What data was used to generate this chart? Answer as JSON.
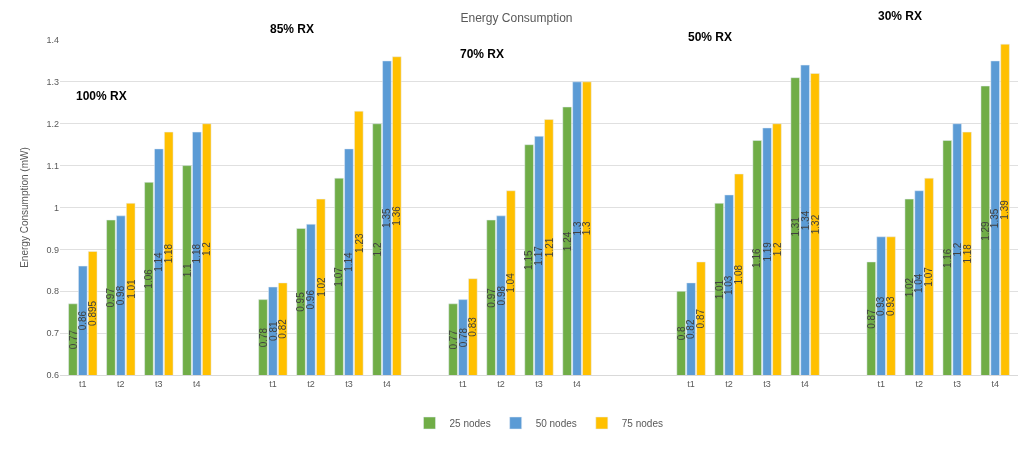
{
  "chart_data": {
    "type": "bar",
    "title": "Energy Consumption",
    "ylabel": "Energy Consumption (mW)",
    "categories": [
      "t1",
      "t2",
      "t3",
      "t4",
      null,
      "t1",
      "t2",
      "t3",
      "t4",
      null,
      "t1",
      "t2",
      "t3",
      "t4",
      null,
      null,
      "t1",
      "t2",
      "t3",
      "t4",
      null,
      "t1",
      "t2",
      "t3",
      "t4"
    ],
    "series": [
      {
        "name": "25 nodes",
        "color": "#70ad47",
        "values": [
          0.77,
          0.97,
          1.06,
          1.1,
          null,
          0.78,
          0.95,
          1.07,
          1.2,
          null,
          0.77,
          0.97,
          1.15,
          1.24,
          null,
          null,
          0.8,
          1.01,
          1.16,
          1.31,
          null,
          0.87,
          1.02,
          1.16,
          1.29
        ]
      },
      {
        "name": "50 nodes",
        "color": "#5b9bd5",
        "values": [
          0.86,
          0.98,
          1.14,
          1.18,
          null,
          0.81,
          0.96,
          1.14,
          1.35,
          null,
          0.78,
          0.98,
          1.17,
          1.3,
          null,
          null,
          0.82,
          1.03,
          1.19,
          1.34,
          null,
          0.93,
          1.04,
          1.2,
          1.35
        ]
      },
      {
        "name": "75 nodes",
        "color": "#ffc000",
        "values": [
          0.895,
          1.01,
          1.18,
          1.2,
          null,
          0.82,
          1.02,
          1.23,
          1.36,
          null,
          0.83,
          1.04,
          1.21,
          1.3,
          null,
          null,
          0.87,
          1.08,
          1.2,
          1.32,
          null,
          0.93,
          1.07,
          1.18,
          1.39
        ]
      }
    ],
    "annotations": [
      "100% RX",
      "85% RX",
      "70% RX",
      "50% RX",
      "30% RX"
    ],
    "ylim": [
      0.6,
      1.4
    ],
    "yticks": [
      0.6,
      0.7,
      0.8,
      0.9,
      1,
      1.1,
      1.2,
      1.3,
      1.4
    ],
    "grid": "y",
    "legend": "bottom",
    "data_labels": true
  }
}
